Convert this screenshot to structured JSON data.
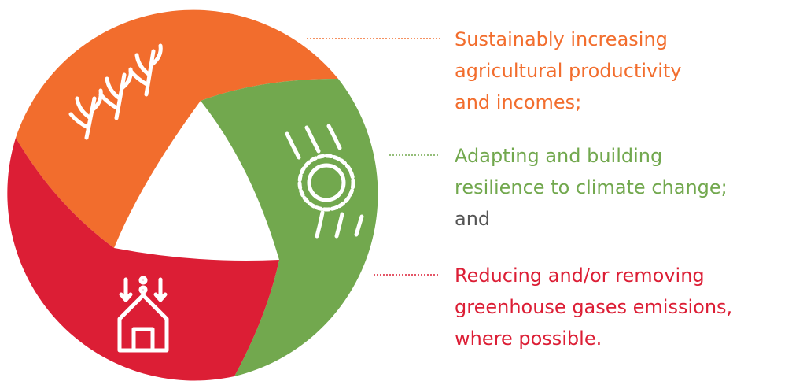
{
  "items": [
    {
      "lines": [
        "Sustainably increasing",
        "agricultural productivity",
        "and incomes;"
      ]
    },
    {
      "lines": [
        "Adapting and building",
        "resilience to climate change;"
      ],
      "suffix": "and"
    },
    {
      "lines": [
        "Reducing and/or removing",
        "greenhouse gases emissions,",
        "where possible."
      ]
    }
  ]
}
